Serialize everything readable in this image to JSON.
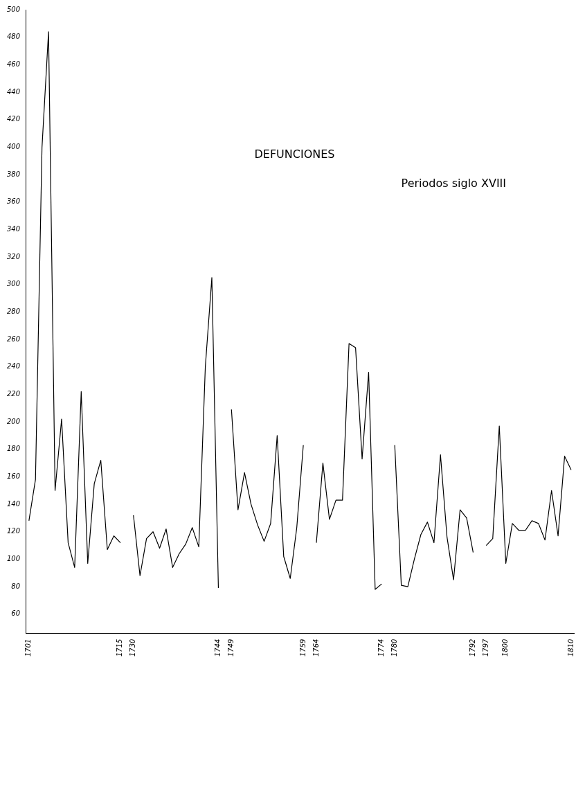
{
  "chart_data": {
    "type": "line",
    "title": "DEFUNCIONES",
    "subtitle": "Periodos siglo XVIII",
    "categories": [
      "1701",
      null,
      null,
      null,
      null,
      null,
      null,
      null,
      null,
      null,
      null,
      null,
      null,
      null,
      "1715",
      null,
      "1730",
      null,
      null,
      null,
      null,
      null,
      null,
      null,
      null,
      null,
      null,
      null,
      null,
      "1744",
      null,
      "1749",
      null,
      null,
      null,
      null,
      null,
      null,
      null,
      null,
      null,
      null,
      "1759",
      null,
      "1764",
      null,
      null,
      null,
      null,
      null,
      null,
      null,
      null,
      null,
      "1774",
      null,
      "1780",
      null,
      null,
      null,
      null,
      null,
      null,
      null,
      null,
      null,
      null,
      null,
      "1792",
      null,
      "1797",
      null,
      null,
      "1800",
      null,
      null,
      null,
      null,
      null,
      null,
      null,
      null,
      null,
      "1810"
    ],
    "series": [
      {
        "color": "#000000",
        "values": [
          128,
          158,
          400,
          484,
          150,
          202,
          112,
          94,
          222,
          97,
          155,
          172,
          107,
          117,
          112,
          null,
          132,
          88,
          115,
          120,
          108,
          122,
          94,
          104,
          111,
          123,
          109,
          240,
          305,
          79,
          null,
          209,
          136,
          163,
          140,
          125,
          113,
          126,
          190,
          102,
          86,
          123,
          183,
          null,
          112,
          170,
          129,
          143,
          143,
          257,
          254,
          173,
          236,
          78,
          82,
          null,
          183,
          81,
          80,
          100,
          118,
          127,
          112,
          176,
          116,
          85,
          136,
          130,
          105,
          null,
          110,
          115,
          197,
          97,
          126,
          121,
          121,
          128,
          126,
          114,
          150,
          117,
          175,
          165
        ]
      }
    ],
    "ylim": [
      46,
      500
    ],
    "yticks": [
      60,
      80,
      100,
      120,
      140,
      160,
      180,
      200,
      220,
      240,
      260,
      280,
      300,
      320,
      340,
      360,
      380,
      400,
      420,
      440,
      460,
      480,
      500
    ],
    "grid": false,
    "legend": false,
    "marker": "none",
    "line_style": "solid"
  }
}
